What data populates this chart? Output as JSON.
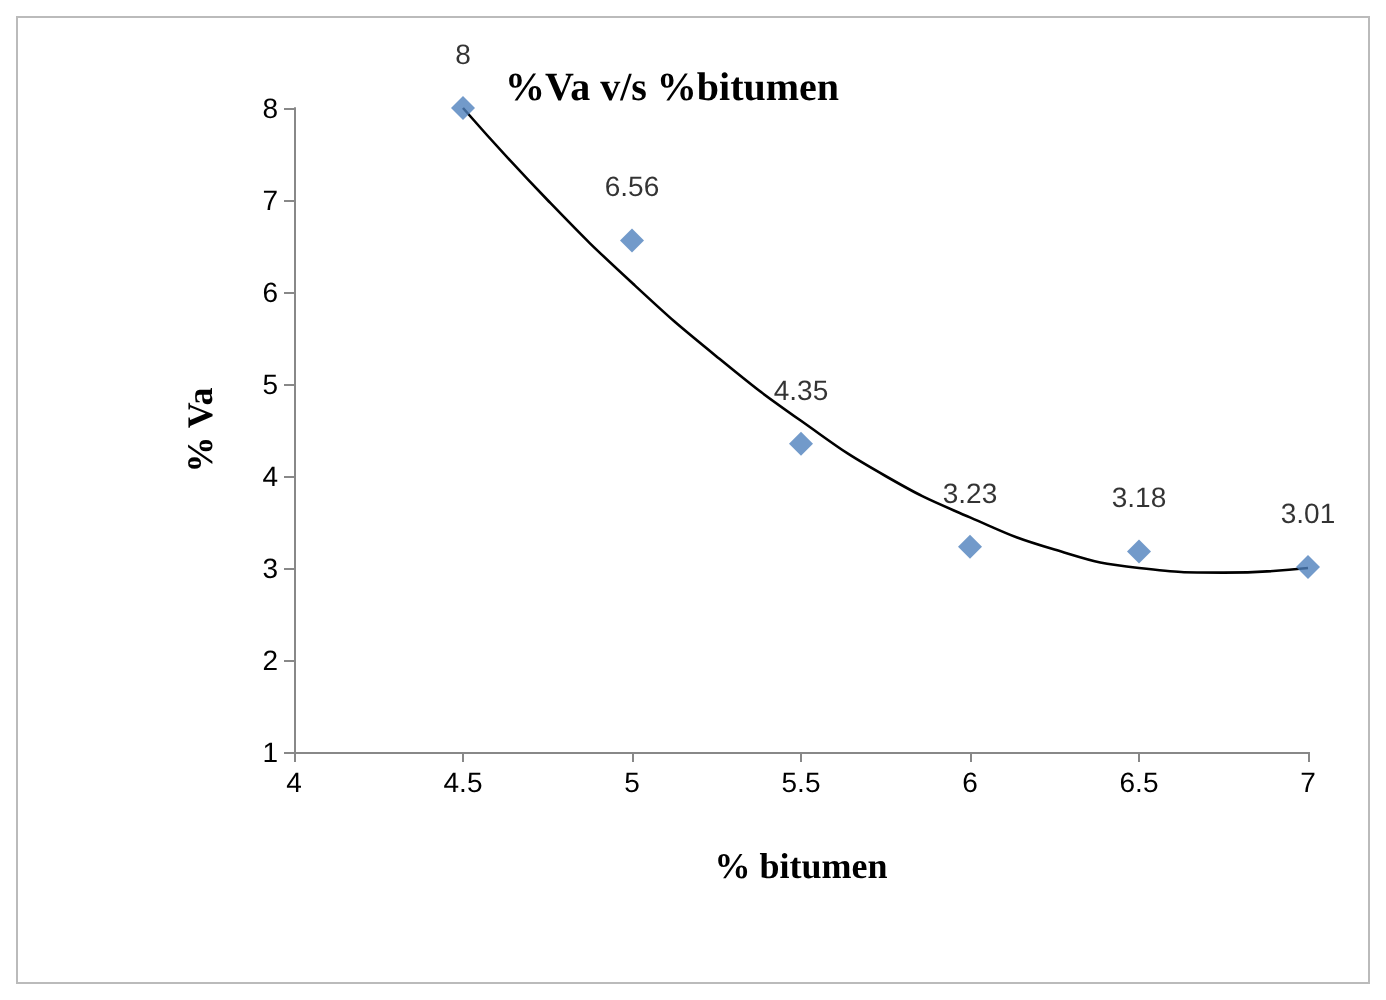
{
  "chart_data": {
    "type": "scatter",
    "title": "%Va v/s %bitumen",
    "xlabel": "% bitumen",
    "ylabel": "% Va",
    "xlim": [
      4,
      7
    ],
    "xticks": [
      4,
      4.5,
      5,
      5.5,
      6,
      6.5,
      7
    ],
    "ylim": [
      1,
      8
    ],
    "yticks": [
      1,
      2,
      3,
      4,
      5,
      6,
      7,
      8
    ],
    "grid": false,
    "marker": "diamond",
    "series": [
      {
        "color": "#4f81bd",
        "x": [
          4.5,
          5,
          5.5,
          6,
          6.5,
          7
        ],
        "values": [
          8,
          6.56,
          4.35,
          3.23,
          3.18,
          3.01
        ],
        "value_labels": [
          "8",
          "6.56",
          "4.35",
          "3.23",
          "3.18",
          "3.01"
        ]
      },
      {
        "type": "line",
        "color": "#000000",
        "marker": "none",
        "line_style": "solid",
        "x": [
          4.5,
          4.75,
          5,
          5.25,
          5.5,
          5.75,
          6,
          6.25,
          6.5,
          6.75,
          7
        ],
        "values": [
          8.0,
          7.0,
          6.1,
          5.3,
          4.6,
          4.0,
          3.55,
          3.2,
          3.0,
          2.95,
          3.0
        ]
      }
    ]
  }
}
